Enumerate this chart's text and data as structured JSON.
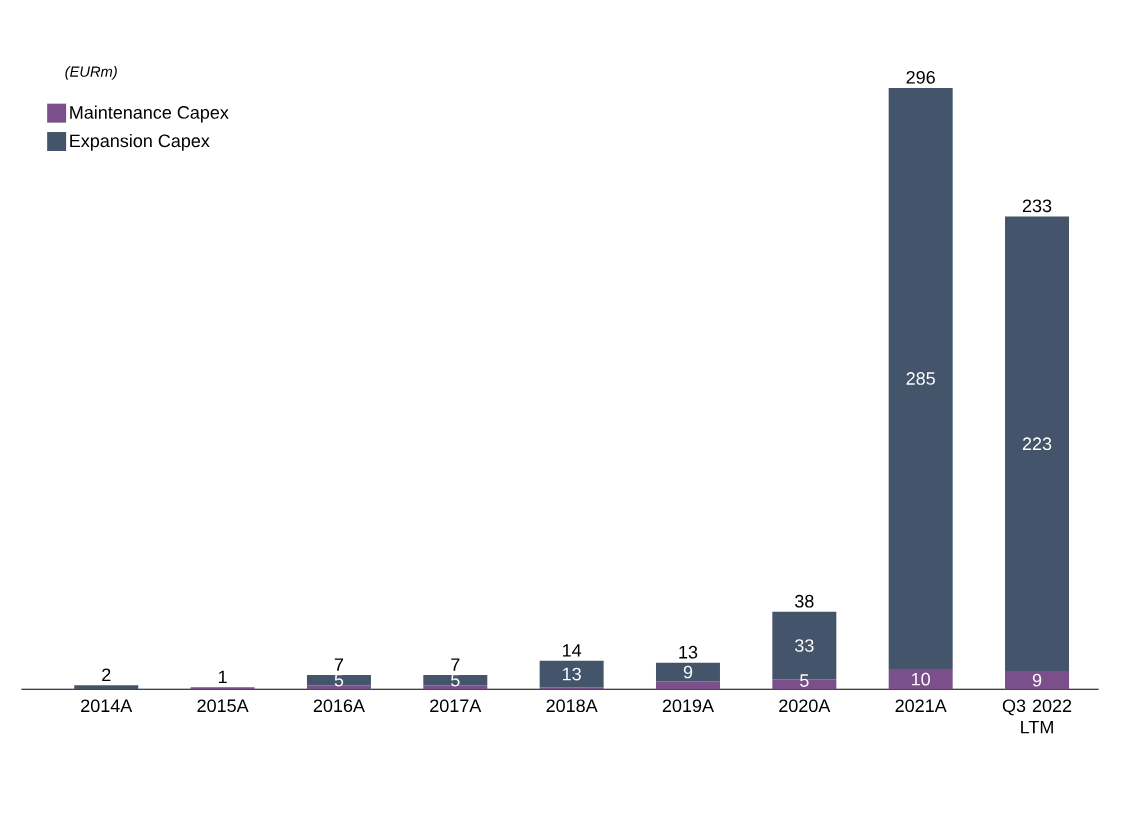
{
  "chart_data": {
    "type": "bar",
    "stacked": true,
    "ylabel": "(EURm)",
    "legend": "top left",
    "categories": [
      "2014A",
      "2015A",
      "2016A",
      "2017A",
      "2018A",
      "2019A",
      "2020A",
      "2021A",
      "Q3 2022 LTM"
    ],
    "series": [
      {
        "name": "Maintenance Capex",
        "color": "#7b4f8a",
        "values": [
          0,
          1,
          2,
          2,
          1,
          4,
          5,
          10,
          9
        ],
        "value_labels": [
          null,
          null,
          null,
          null,
          null,
          null,
          "5",
          "10",
          "9"
        ]
      },
      {
        "name": "Expansion Capex",
        "color": "#44546a",
        "values": [
          2,
          0,
          5,
          5,
          13,
          9,
          33,
          285,
          223
        ],
        "value_labels": [
          null,
          null,
          "5",
          "5",
          "13",
          "9",
          "33",
          "285",
          "223"
        ]
      }
    ],
    "totals": [
      "2",
      "1",
      "7",
      "7",
      "14",
      "13",
      "38",
      "296",
      "233"
    ]
  }
}
